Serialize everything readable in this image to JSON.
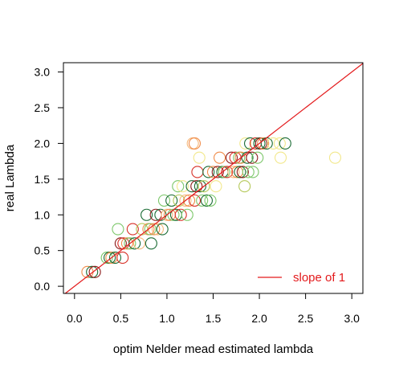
{
  "chart_data": {
    "type": "scatter",
    "xlabel": "optim Nelder mead estimated lambda",
    "ylabel": "real Lambda",
    "xlim": [
      -0.12,
      3.12
    ],
    "ylim": [
      -0.1,
      3.13
    ],
    "x_ticks": [
      0.0,
      0.5,
      1.0,
      1.5,
      2.0,
      2.5,
      3.0
    ],
    "x_tick_labels": [
      "0.0",
      "0.5",
      "1.0",
      "1.5",
      "2.0",
      "2.5",
      "3.0"
    ],
    "y_ticks": [
      0.0,
      0.5,
      1.0,
      1.5,
      2.0,
      2.5,
      3.0
    ],
    "y_tick_labels": [
      "0.0",
      "0.5",
      "1.0",
      "1.5",
      "2.0",
      "2.5",
      "3.0"
    ],
    "grid": false,
    "reference_line": {
      "slope": 1,
      "intercept": 0,
      "color": "#e31a1c",
      "legend_label": "slope of 1"
    },
    "legend_position": "bottom-right",
    "point_colors": {
      "dark_green": "#1a6b34",
      "dark_red": "#8b1a1a",
      "red": "#d73027",
      "orange": "#f08c4a",
      "light_orange": "#f6b87a",
      "light_green": "#7cc76a",
      "yellow": "#f2e88c",
      "olive": "#b5c95a"
    },
    "points": [
      {
        "x": 0.14,
        "y": 0.2,
        "c": "orange"
      },
      {
        "x": 0.19,
        "y": 0.2,
        "c": "dark_green"
      },
      {
        "x": 0.22,
        "y": 0.2,
        "c": "dark_red"
      },
      {
        "x": 0.35,
        "y": 0.4,
        "c": "light_green"
      },
      {
        "x": 0.38,
        "y": 0.4,
        "c": "dark_green"
      },
      {
        "x": 0.4,
        "y": 0.4,
        "c": "orange"
      },
      {
        "x": 0.44,
        "y": 0.4,
        "c": "dark_green"
      },
      {
        "x": 0.52,
        "y": 0.4,
        "c": "red"
      },
      {
        "x": 0.47,
        "y": 0.8,
        "c": "light_green"
      },
      {
        "x": 0.5,
        "y": 0.6,
        "c": "dark_red"
      },
      {
        "x": 0.53,
        "y": 0.6,
        "c": "red"
      },
      {
        "x": 0.57,
        "y": 0.6,
        "c": "orange"
      },
      {
        "x": 0.6,
        "y": 0.6,
        "c": "light_green"
      },
      {
        "x": 0.63,
        "y": 0.8,
        "c": "red"
      },
      {
        "x": 0.65,
        "y": 0.6,
        "c": "dark_green"
      },
      {
        "x": 0.7,
        "y": 0.6,
        "c": "light_orange"
      },
      {
        "x": 0.73,
        "y": 0.8,
        "c": "olive"
      },
      {
        "x": 0.78,
        "y": 1.0,
        "c": "dark_green"
      },
      {
        "x": 0.8,
        "y": 0.8,
        "c": "orange"
      },
      {
        "x": 0.82,
        "y": 0.8,
        "c": "light_green"
      },
      {
        "x": 0.83,
        "y": 0.6,
        "c": "dark_green"
      },
      {
        "x": 0.86,
        "y": 0.8,
        "c": "orange"
      },
      {
        "x": 0.88,
        "y": 1.0,
        "c": "dark_red"
      },
      {
        "x": 0.9,
        "y": 0.8,
        "c": "light_orange"
      },
      {
        "x": 0.93,
        "y": 1.0,
        "c": "dark_green"
      },
      {
        "x": 0.95,
        "y": 0.8,
        "c": "dark_green"
      },
      {
        "x": 0.97,
        "y": 1.2,
        "c": "light_green"
      },
      {
        "x": 1.0,
        "y": 1.0,
        "c": "light_orange"
      },
      {
        "x": 1.03,
        "y": 1.0,
        "c": "orange"
      },
      {
        "x": 1.05,
        "y": 1.2,
        "c": "dark_green"
      },
      {
        "x": 1.07,
        "y": 1.0,
        "c": "light_green"
      },
      {
        "x": 1.1,
        "y": 1.0,
        "c": "dark_green"
      },
      {
        "x": 1.12,
        "y": 1.4,
        "c": "light_green"
      },
      {
        "x": 1.13,
        "y": 1.2,
        "c": "olive"
      },
      {
        "x": 1.15,
        "y": 1.0,
        "c": "red"
      },
      {
        "x": 1.17,
        "y": 1.4,
        "c": "yellow"
      },
      {
        "x": 1.2,
        "y": 1.2,
        "c": "light_orange"
      },
      {
        "x": 1.22,
        "y": 1.0,
        "c": "light_green"
      },
      {
        "x": 1.24,
        "y": 1.2,
        "c": "orange"
      },
      {
        "x": 1.27,
        "y": 1.4,
        "c": "dark_green"
      },
      {
        "x": 1.28,
        "y": 2.0,
        "c": "light_orange"
      },
      {
        "x": 1.3,
        "y": 2.0,
        "c": "orange"
      },
      {
        "x": 1.3,
        "y": 1.2,
        "c": "red"
      },
      {
        "x": 1.32,
        "y": 1.4,
        "c": "dark_red"
      },
      {
        "x": 1.33,
        "y": 1.6,
        "c": "red"
      },
      {
        "x": 1.35,
        "y": 1.8,
        "c": "yellow"
      },
      {
        "x": 1.36,
        "y": 1.4,
        "c": "dark_green"
      },
      {
        "x": 1.38,
        "y": 1.2,
        "c": "light_green"
      },
      {
        "x": 1.4,
        "y": 1.4,
        "c": "olive"
      },
      {
        "x": 1.43,
        "y": 1.2,
        "c": "dark_green"
      },
      {
        "x": 1.45,
        "y": 1.6,
        "c": "dark_green"
      },
      {
        "x": 1.47,
        "y": 1.2,
        "c": "light_green"
      },
      {
        "x": 1.5,
        "y": 1.6,
        "c": "orange"
      },
      {
        "x": 1.53,
        "y": 1.4,
        "c": "yellow"
      },
      {
        "x": 1.55,
        "y": 1.6,
        "c": "dark_red"
      },
      {
        "x": 1.57,
        "y": 1.8,
        "c": "orange"
      },
      {
        "x": 1.6,
        "y": 1.6,
        "c": "dark_green"
      },
      {
        "x": 1.62,
        "y": 1.6,
        "c": "light_green"
      },
      {
        "x": 1.65,
        "y": 1.6,
        "c": "red"
      },
      {
        "x": 1.7,
        "y": 1.8,
        "c": "dark_red"
      },
      {
        "x": 1.72,
        "y": 1.6,
        "c": "light_orange"
      },
      {
        "x": 1.74,
        "y": 1.8,
        "c": "red"
      },
      {
        "x": 1.76,
        "y": 1.6,
        "c": "orange"
      },
      {
        "x": 1.78,
        "y": 1.8,
        "c": "light_green"
      },
      {
        "x": 1.79,
        "y": 1.6,
        "c": "dark_green"
      },
      {
        "x": 1.8,
        "y": 1.8,
        "c": "orange"
      },
      {
        "x": 1.82,
        "y": 1.6,
        "c": "dark_red"
      },
      {
        "x": 1.84,
        "y": 1.4,
        "c": "olive"
      },
      {
        "x": 1.85,
        "y": 2.0,
        "c": "yellow"
      },
      {
        "x": 1.87,
        "y": 1.8,
        "c": "dark_green"
      },
      {
        "x": 1.88,
        "y": 1.6,
        "c": "light_green"
      },
      {
        "x": 1.9,
        "y": 2.0,
        "c": "dark_green"
      },
      {
        "x": 1.92,
        "y": 1.8,
        "c": "dark_red"
      },
      {
        "x": 1.93,
        "y": 1.6,
        "c": "light_green"
      },
      {
        "x": 1.96,
        "y": 2.0,
        "c": "red"
      },
      {
        "x": 1.98,
        "y": 1.8,
        "c": "light_green"
      },
      {
        "x": 2.0,
        "y": 2.0,
        "c": "dark_green"
      },
      {
        "x": 2.02,
        "y": 2.0,
        "c": "dark_red"
      },
      {
        "x": 2.04,
        "y": 2.0,
        "c": "orange"
      },
      {
        "x": 2.08,
        "y": 2.0,
        "c": "dark_green"
      },
      {
        "x": 2.15,
        "y": 2.0,
        "c": "yellow"
      },
      {
        "x": 2.22,
        "y": 2.0,
        "c": "yellow"
      },
      {
        "x": 2.28,
        "y": 2.0,
        "c": "dark_green"
      },
      {
        "x": 2.23,
        "y": 1.8,
        "c": "yellow"
      },
      {
        "x": 2.82,
        "y": 1.8,
        "c": "yellow"
      }
    ]
  }
}
